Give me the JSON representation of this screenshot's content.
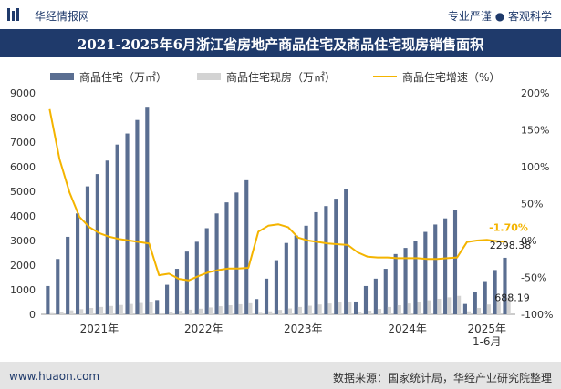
{
  "header": {
    "brand": "华经情报网",
    "tagline": "专业严谨 ● 客观科学"
  },
  "title": "2021-2025年6月浙江省房地产商品住宅及商品住宅现房销售面积",
  "legend": {
    "bar1": "商品住宅（万㎡）",
    "bar2": "商品住宅现房（万㎡）",
    "line": "商品住宅增速（%）"
  },
  "footer": {
    "site": "www.huaon.com",
    "source": "数据来源：国家统计局，华经产业研究院整理"
  },
  "colors": {
    "bar1": "#5a6e91",
    "bar2": "#d3d3d3",
    "line": "#f4b400",
    "header_band": "#1f3a6b",
    "highlight_label": "#f4b400"
  },
  "chart_data": {
    "type": "bar+line",
    "x_labels": [
      "2021年",
      "2022年",
      "2023年",
      "2024年",
      "2025年\n1-6月"
    ],
    "left_axis": {
      "min": 0,
      "max": 9000,
      "step": 1000
    },
    "right_axis": {
      "min": -100,
      "max": 200,
      "step": 50,
      "unit": "%"
    },
    "years": [
      {
        "label": "2021年",
        "residential": [
          1150,
          2250,
          3150,
          4100,
          5200,
          5700,
          6250,
          6900,
          7350,
          7900,
          8400
        ],
        "completed": [
          50,
          100,
          160,
          210,
          260,
          300,
          340,
          380,
          420,
          460,
          500
        ],
        "growth": [
          178,
          110,
          65,
          32,
          18,
          10,
          5,
          2,
          0,
          -2,
          -4
        ]
      },
      {
        "label": "2022年",
        "residential": [
          580,
          1200,
          1850,
          2550,
          2950,
          3500,
          4100,
          4550,
          4950,
          5450
        ],
        "completed": [
          40,
          90,
          140,
          190,
          230,
          280,
          330,
          370,
          410,
          450
        ],
        "growth": [
          -47,
          -45,
          -52,
          -54,
          -48,
          -43,
          -40,
          -38,
          -38,
          -37
        ]
      },
      {
        "label": "2023年",
        "residential": [
          620,
          1450,
          2200,
          2900,
          3200,
          3600,
          4150,
          4400,
          4700,
          5100
        ],
        "completed": [
          60,
          120,
          180,
          240,
          300,
          350,
          400,
          440,
          480,
          520
        ],
        "growth": [
          12,
          20,
          22,
          18,
          4,
          0,
          -2,
          -4,
          -5,
          -6
        ]
      },
      {
        "label": "2024年",
        "residential": [
          520,
          1150,
          1450,
          1850,
          2450,
          2700,
          3000,
          3350,
          3650,
          3900,
          4250
        ],
        "completed": [
          70,
          150,
          220,
          300,
          370,
          440,
          510,
          570,
          630,
          690,
          750
        ],
        "growth": [
          -16,
          -22,
          -23,
          -23,
          -24,
          -24,
          -24,
          -25,
          -25,
          -24,
          -23
        ]
      },
      {
        "label": "2025年\n1-6月",
        "residential": [
          420,
          900,
          1350,
          1800,
          2298.38
        ],
        "completed": [
          120,
          260,
          400,
          540,
          688.19
        ],
        "growth": [
          -2,
          0,
          1,
          -1,
          -1.7
        ]
      }
    ],
    "annotations": {
      "last_growth": "-1.70%",
      "last_residential": "2298.38",
      "last_completed": "688.19"
    }
  }
}
